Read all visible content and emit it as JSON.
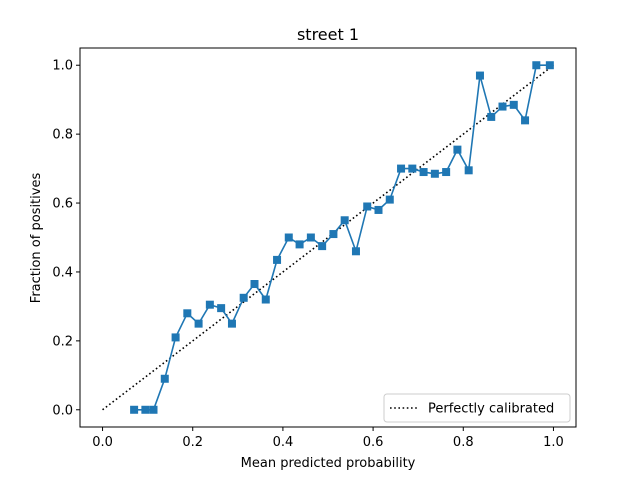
{
  "chart_data": {
    "type": "line",
    "title": "street 1",
    "xlabel": "Mean predicted probability",
    "ylabel": "Fraction of positives",
    "xlim": [
      -0.05,
      1.05
    ],
    "ylim": [
      -0.05,
      1.05
    ],
    "x_ticks": [
      "0.0",
      "0.2",
      "0.4",
      "0.6",
      "0.8",
      "1.0"
    ],
    "y_ticks": [
      "0.0",
      "0.2",
      "0.4",
      "0.6",
      "0.8",
      "1.0"
    ],
    "grid": false,
    "legend_position": "lower-right",
    "series": [
      {
        "name": "Perfectly calibrated",
        "style": "dotted",
        "color": "#000000",
        "x": [
          0.0,
          1.0
        ],
        "y": [
          0.0,
          1.0
        ]
      },
      {
        "style": "solid-square-markers",
        "color": "#1f77b4",
        "x": [
          0.07,
          0.095,
          0.113,
          0.138,
          0.162,
          0.188,
          0.213,
          0.238,
          0.263,
          0.287,
          0.313,
          0.337,
          0.362,
          0.387,
          0.413,
          0.437,
          0.462,
          0.487,
          0.512,
          0.537,
          0.562,
          0.587,
          0.612,
          0.637,
          0.662,
          0.687,
          0.712,
          0.737,
          0.762,
          0.787,
          0.812,
          0.837,
          0.862,
          0.887,
          0.912,
          0.937,
          0.962,
          0.992
        ],
        "y": [
          0.0,
          0.0,
          0.0,
          0.09,
          0.21,
          0.28,
          0.25,
          0.305,
          0.295,
          0.25,
          0.325,
          0.365,
          0.32,
          0.435,
          0.5,
          0.48,
          0.5,
          0.475,
          0.51,
          0.55,
          0.46,
          0.59,
          0.58,
          0.61,
          0.7,
          0.7,
          0.69,
          0.685,
          0.69,
          0.755,
          0.695,
          0.97,
          0.85,
          0.88,
          0.885,
          0.84,
          1.0,
          1.0
        ]
      }
    ]
  }
}
